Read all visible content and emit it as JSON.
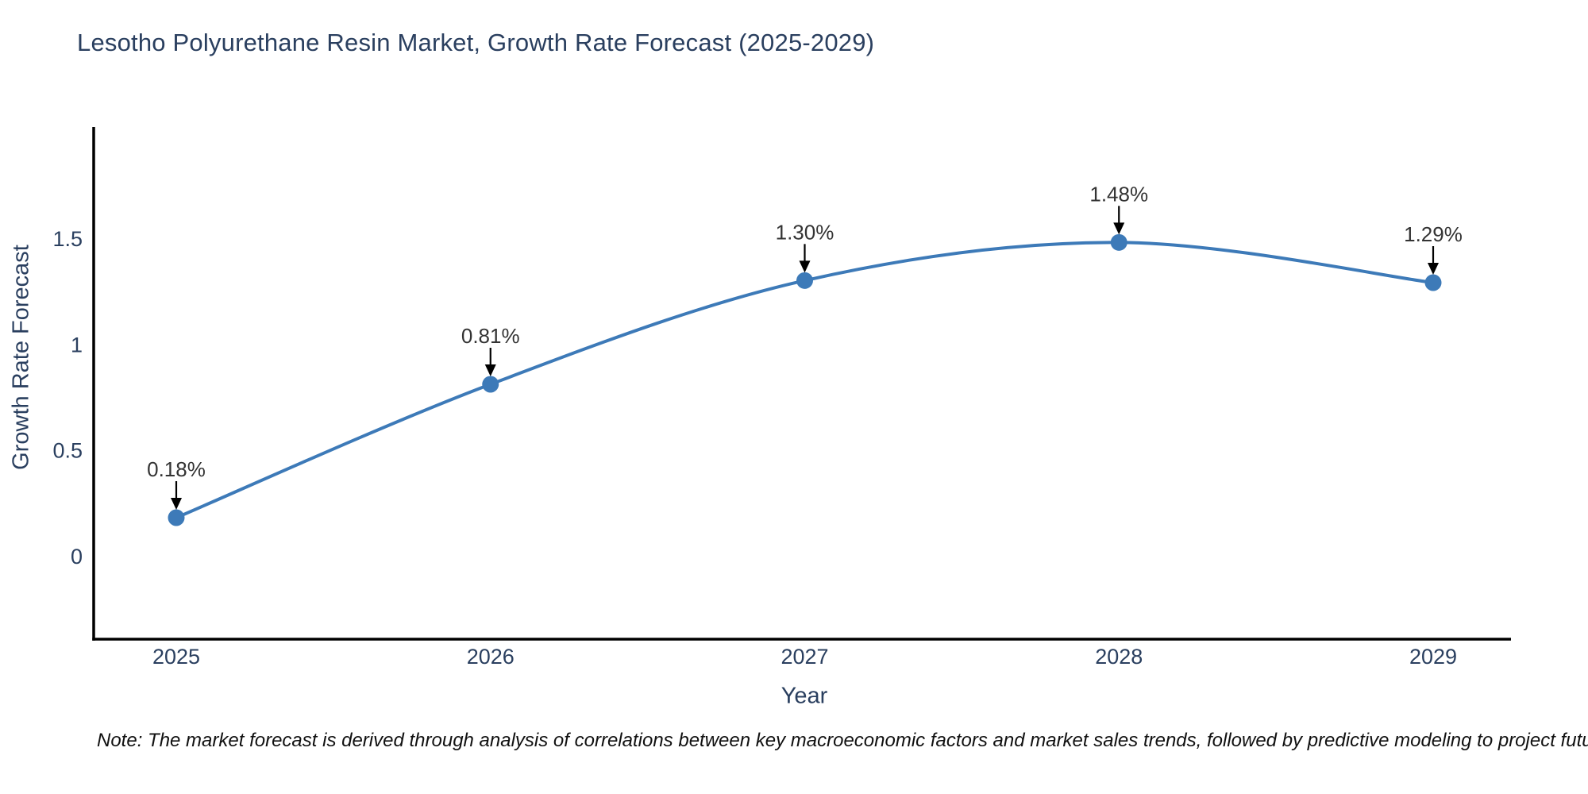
{
  "note": "Note: The market forecast is derived through analysis of correlations between key macroeconomic factors and market sales trends, followed by predictive modeling to project future sales",
  "chart_data": {
    "type": "line",
    "title": "Lesotho Polyurethane Resin Market, Growth Rate Forecast (2025-2029)",
    "xlabel": "Year",
    "ylabel": "Growth Rate Forecast",
    "x": [
      2025,
      2026,
      2027,
      2028,
      2029
    ],
    "x_tick_labels": [
      "2025",
      "2026",
      "2027",
      "2028",
      "2029"
    ],
    "series": [
      {
        "name": "Growth Rate Forecast",
        "values": [
          0.18,
          0.81,
          1.3,
          1.48,
          1.29
        ]
      }
    ],
    "point_labels": [
      "0.18%",
      "0.81%",
      "1.30%",
      "1.48%",
      "1.29%"
    ],
    "y_ticks": [
      "0",
      "0.5",
      "1",
      "1.5"
    ],
    "y_tick_values": [
      0,
      0.5,
      1,
      1.5
    ],
    "ylim": [
      -0.39,
      2.03
    ],
    "grid": false,
    "legend": "none",
    "line_shape": "spline",
    "colors": {
      "line": "#3d7ab8",
      "marker": "#3d7ab8",
      "axis": "#000000",
      "tick_text": "#2a3f5f",
      "annotation_text": "#333333",
      "arrow": "#000000",
      "title_text": "#2a3f5f",
      "background": "#ffffff"
    }
  }
}
